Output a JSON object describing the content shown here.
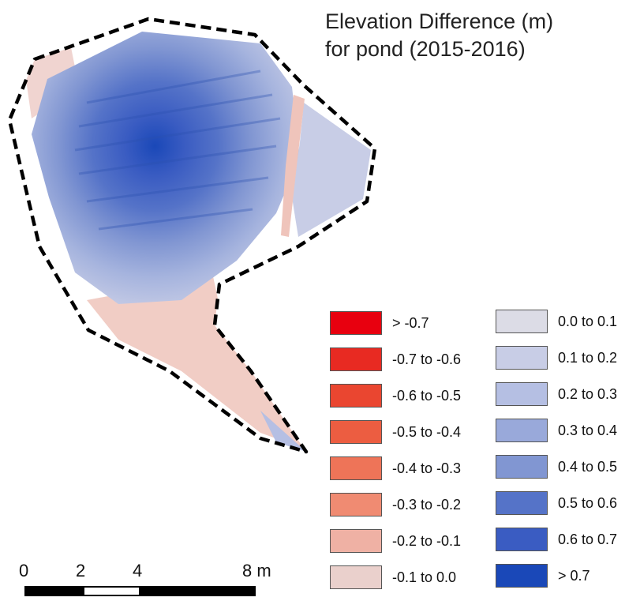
{
  "title": {
    "line1": "Elevation Difference (m)",
    "line2": "for pond (2015-2016)"
  },
  "legend": {
    "negative": [
      {
        "label": "> -0.7",
        "color": "#e8000f"
      },
      {
        "label": "-0.7 to -0.6",
        "color": "#e82a22"
      },
      {
        "label": "-0.6 to -0.5",
        "color": "#ea4630"
      },
      {
        "label": "-0.5 to -0.4",
        "color": "#ec5d41"
      },
      {
        "label": "-0.4 to -0.3",
        "color": "#ee7458"
      },
      {
        "label": "-0.3 to -0.2",
        "color": "#f08b72"
      },
      {
        "label": "-0.2 to -0.1",
        "color": "#efb1a4"
      },
      {
        "label": "-0.1 to 0.0",
        "color": "#ead0cc"
      }
    ],
    "positive": [
      {
        "label": "0.0 to 0.1",
        "color": "#dcdce6"
      },
      {
        "label": "0.1 to 0.2",
        "color": "#c8cde6"
      },
      {
        "label": "0.2 to 0.3",
        "color": "#b5bfe3"
      },
      {
        "label": "0.3 to 0.4",
        "color": "#99a9da"
      },
      {
        "label": "0.4 to 0.5",
        "color": "#8196d2"
      },
      {
        "label": "0.5 to 0.6",
        "color": "#5573c8"
      },
      {
        "label": "0.6 to 0.7",
        "color": "#3a5cc2"
      },
      {
        "label": "> 0.7",
        "color": "#1a48b8"
      }
    ]
  },
  "scale_bar": {
    "ticks": [
      "0",
      "2",
      "4",
      "8 m"
    ],
    "values_m": [
      0,
      2,
      4,
      8
    ]
  },
  "colors": {
    "outline": "#000000",
    "bar_dark": "#000000",
    "bar_light": "#ffffff"
  }
}
